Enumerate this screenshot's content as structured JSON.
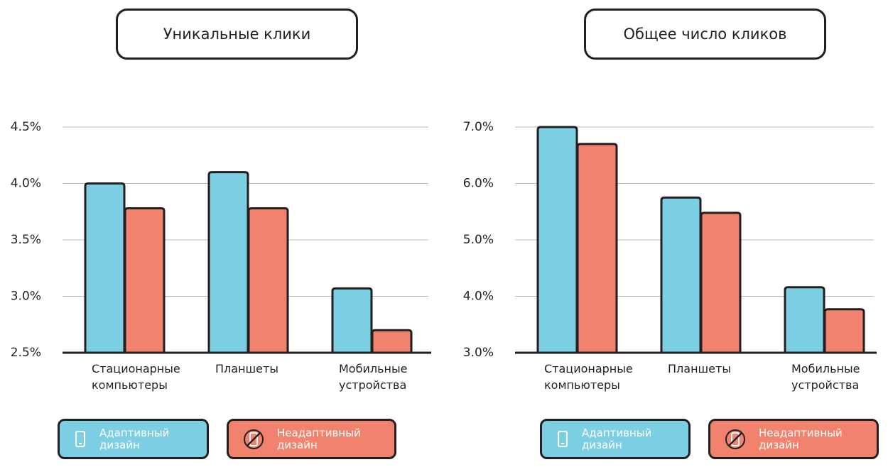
{
  "chart_data": [
    {
      "type": "bar",
      "title": "Уникальные клики",
      "categories": [
        "Стационарные\nкомпьютеры",
        "Планшеты",
        "Мобильные\nустройства"
      ],
      "series": [
        {
          "name": "Адаптивный дизайн",
          "color": "#7ccfe3",
          "values": [
            4.0,
            4.1,
            3.07
          ]
        },
        {
          "name": "Неадаптивный дизайн",
          "color": "#f0826e",
          "values": [
            3.78,
            3.78,
            2.7
          ]
        }
      ],
      "ylim": [
        2.5,
        4.5
      ],
      "yticks": [
        {
          "value": 2.5,
          "label": "2.5%"
        },
        {
          "value": 3.0,
          "label": "3.0%"
        },
        {
          "value": 3.5,
          "label": "3.5%"
        },
        {
          "value": 4.0,
          "label": "4.0%"
        },
        {
          "value": 4.5,
          "label": "4.5%"
        }
      ],
      "grid": true
    },
    {
      "type": "bar",
      "title": "Общее число кликов",
      "categories": [
        "Стационарные\nкомпьютеры",
        "Планшеты",
        "Мобильные\nустройства"
      ],
      "series": [
        {
          "name": "Адаптивный дизайн",
          "color": "#7ccfe3",
          "values": [
            7.0,
            5.75,
            4.16
          ]
        },
        {
          "name": "Неадаптивный дизайн",
          "color": "#f0826e",
          "values": [
            6.7,
            5.48,
            3.77
          ]
        }
      ],
      "ylim": [
        3.0,
        7.0
      ],
      "yticks": [
        {
          "value": 3.0,
          "label": "3.0%"
        },
        {
          "value": 4.0,
          "label": "4.0%"
        },
        {
          "value": 5.0,
          "label": "5.0%"
        },
        {
          "value": 6.0,
          "label": "6.0%"
        },
        {
          "value": 7.0,
          "label": "7.0%"
        }
      ],
      "grid": true
    }
  ]
}
